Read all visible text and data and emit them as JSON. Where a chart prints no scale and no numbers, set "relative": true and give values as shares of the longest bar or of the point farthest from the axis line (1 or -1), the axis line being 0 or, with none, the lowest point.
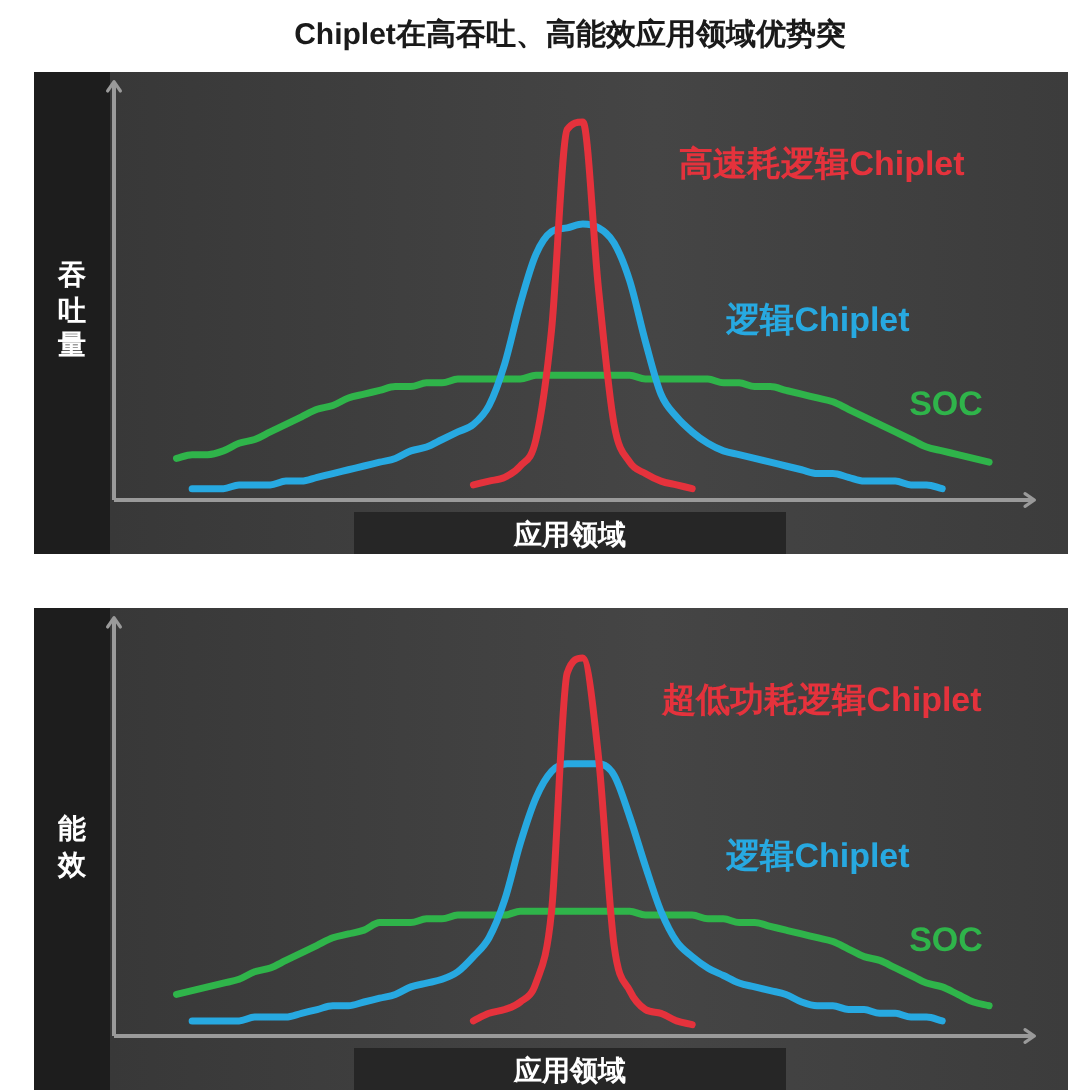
{
  "chart_data": [
    {
      "type": "line",
      "title": "Chiplet在高吞吐、高能效应用领域优势突",
      "xlabel": "应用领域",
      "ylabel": "吞吐量",
      "relative": true,
      "categories": [
        null,
        null,
        null,
        null,
        null,
        null,
        null,
        null,
        null,
        null,
        null,
        null,
        null,
        null,
        null,
        null,
        null,
        null,
        null,
        null,
        null,
        null,
        null,
        null,
        null,
        null,
        null,
        null,
        null,
        null,
        null,
        null,
        null,
        null,
        null,
        null,
        null,
        null,
        null,
        null,
        null,
        null,
        null,
        null,
        null,
        null,
        null,
        null,
        null,
        null,
        null,
        null,
        null,
        null,
        null,
        null,
        null,
        null,
        null,
        null
      ],
      "series": [
        {
          "name": "高速耗逻辑Chiplet",
          "color": "#e5323c",
          "values": [
            null,
            null,
            null,
            null,
            null,
            null,
            null,
            null,
            null,
            null,
            null,
            null,
            null,
            null,
            null,
            null,
            null,
            null,
            null,
            null,
            null,
            null,
            null,
            0.04,
            0.05,
            0.06,
            0.09,
            0.16,
            0.45,
            0.98,
            1,
            0.56,
            0.2,
            0.1,
            0.07,
            0.05,
            0.04,
            0.03,
            null,
            null,
            null,
            null,
            null,
            null,
            null,
            null,
            null,
            null,
            null,
            null,
            null,
            null,
            null,
            null,
            null,
            null,
            null,
            null,
            null,
            null
          ]
        },
        {
          "name": "逻辑Chiplet",
          "color": "#27a9e1",
          "values": [
            null,
            null,
            null,
            null,
            null,
            0.03,
            0.03,
            0.03,
            0.04,
            0.04,
            0.04,
            0.05,
            0.05,
            0.06,
            0.07,
            0.08,
            0.09,
            0.1,
            0.11,
            0.13,
            0.14,
            0.16,
            0.18,
            0.2,
            0.25,
            0.36,
            0.52,
            0.65,
            0.71,
            0.72,
            0.73,
            0.72,
            0.68,
            0.58,
            0.42,
            0.28,
            0.22,
            0.18,
            0.15,
            0.13,
            0.12,
            0.11,
            0.1,
            0.09,
            0.08,
            0.07,
            0.07,
            0.06,
            0.05,
            0.05,
            0.05,
            0.04,
            0.04,
            0.03,
            null,
            null,
            null,
            null,
            null,
            null
          ]
        },
        {
          "name": "SOC",
          "color": "#2fb44a",
          "values": [
            null,
            null,
            null,
            null,
            0.11,
            0.12,
            0.12,
            0.13,
            0.15,
            0.16,
            0.18,
            0.2,
            0.22,
            0.24,
            0.25,
            0.27,
            0.28,
            0.29,
            0.3,
            0.3,
            0.31,
            0.31,
            0.32,
            0.32,
            0.32,
            0.32,
            0.32,
            0.33,
            0.33,
            0.33,
            0.33,
            0.33,
            0.33,
            0.33,
            0.32,
            0.32,
            0.32,
            0.32,
            0.32,
            0.31,
            0.31,
            0.3,
            0.3,
            0.29,
            0.28,
            0.27,
            0.26,
            0.24,
            0.22,
            0.2,
            0.18,
            0.16,
            0.14,
            0.13,
            0.12,
            0.11,
            0.1,
            null,
            null,
            null
          ]
        }
      ]
    },
    {
      "type": "line",
      "xlabel": "应用领域",
      "ylabel": "能效",
      "relative": true,
      "categories": [
        null,
        null,
        null,
        null,
        null,
        null,
        null,
        null,
        null,
        null,
        null,
        null,
        null,
        null,
        null,
        null,
        null,
        null,
        null,
        null,
        null,
        null,
        null,
        null,
        null,
        null,
        null,
        null,
        null,
        null,
        null,
        null,
        null,
        null,
        null,
        null,
        null,
        null,
        null,
        null,
        null,
        null,
        null,
        null,
        null,
        null,
        null,
        null,
        null,
        null,
        null,
        null,
        null,
        null,
        null,
        null,
        null,
        null,
        null,
        null
      ],
      "series": [
        {
          "name": "超低功耗逻辑Chiplet",
          "color": "#e5323c",
          "values": [
            null,
            null,
            null,
            null,
            null,
            null,
            null,
            null,
            null,
            null,
            null,
            null,
            null,
            null,
            null,
            null,
            null,
            null,
            null,
            null,
            null,
            null,
            null,
            0.04,
            0.06,
            0.07,
            0.09,
            0.14,
            0.33,
            0.96,
            1,
            0.74,
            0.24,
            0.12,
            0.07,
            0.06,
            0.04,
            0.03,
            null,
            null,
            null,
            null,
            null,
            null,
            null,
            null,
            null,
            null,
            null,
            null,
            null,
            null,
            null,
            null,
            null,
            null,
            null,
            null,
            null,
            null
          ]
        },
        {
          "name": "逻辑Chiplet",
          "color": "#27a9e1",
          "values": [
            null,
            null,
            null,
            null,
            null,
            0.04,
            0.04,
            0.04,
            0.04,
            0.05,
            0.05,
            0.05,
            0.06,
            0.07,
            0.08,
            0.08,
            0.09,
            0.1,
            0.11,
            0.13,
            0.14,
            0.15,
            0.17,
            0.21,
            0.26,
            0.36,
            0.51,
            0.63,
            0.7,
            0.72,
            0.72,
            0.72,
            0.69,
            0.58,
            0.45,
            0.33,
            0.25,
            0.21,
            0.18,
            0.16,
            0.14,
            0.13,
            0.12,
            0.11,
            0.09,
            0.08,
            0.08,
            0.07,
            0.07,
            0.06,
            0.06,
            0.05,
            0.05,
            0.04,
            null,
            null,
            null,
            null,
            null,
            null
          ]
        },
        {
          "name": "SOC",
          "color": "#2fb44a",
          "values": [
            null,
            null,
            null,
            null,
            0.11,
            0.12,
            0.13,
            0.14,
            0.15,
            0.17,
            0.18,
            0.2,
            0.22,
            0.24,
            0.26,
            0.27,
            0.28,
            0.3,
            0.3,
            0.3,
            0.31,
            0.31,
            0.32,
            0.32,
            0.32,
            0.32,
            0.33,
            0.33,
            0.33,
            0.33,
            0.33,
            0.33,
            0.33,
            0.33,
            0.32,
            0.32,
            0.32,
            0.32,
            0.31,
            0.31,
            0.3,
            0.3,
            0.29,
            0.28,
            0.27,
            0.26,
            0.25,
            0.23,
            0.21,
            0.2,
            0.18,
            0.16,
            0.14,
            0.13,
            0.11,
            0.09,
            0.08,
            null,
            null,
            null
          ]
        }
      ]
    }
  ]
}
